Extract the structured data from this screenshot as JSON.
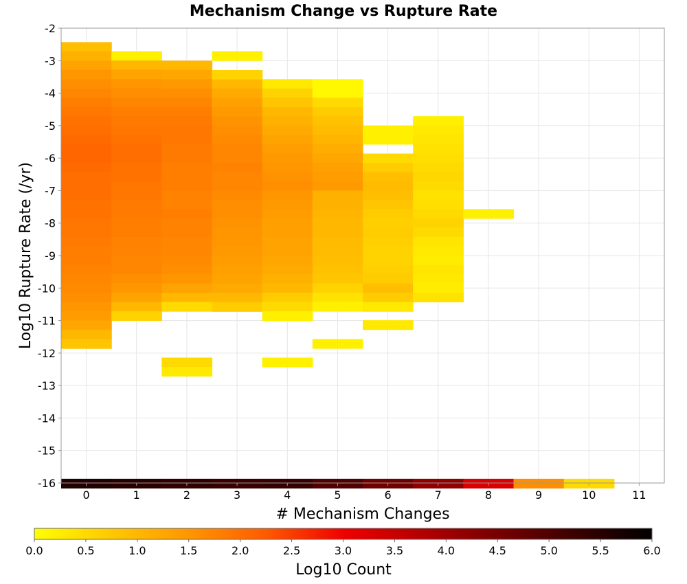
{
  "chart_data": {
    "type": "heatmap",
    "title": "Mechanism Change vs Rupture Rate",
    "xlabel": "# Mechanism Changes",
    "ylabel": "Log10 Rupture Rate (/yr)",
    "xlim": [
      -0.5,
      11.5
    ],
    "ylim": [
      -16,
      -2
    ],
    "x_ticks": [
      "0",
      "1",
      "2",
      "3",
      "4",
      "5",
      "6",
      "7",
      "8",
      "9",
      "10",
      "11"
    ],
    "y_ticks": [
      "-2",
      "-3",
      "-4",
      "-5",
      "-6",
      "-7",
      "-8",
      "-9",
      "-10",
      "-11",
      "-12",
      "-13",
      "-14",
      "-15",
      "-16"
    ],
    "grid": true,
    "bin_height": 0.2857,
    "colorbar": {
      "label": "Log10 Count",
      "range": [
        0,
        6
      ],
      "ticks": [
        "0.0",
        "0.5",
        "1.0",
        "1.5",
        "2.0",
        "2.5",
        "3.0",
        "3.5",
        "4.0",
        "4.5",
        "5.0",
        "5.5",
        "6.0"
      ],
      "colors": [
        "#ffff00",
        "#ffc800",
        "#ff9600",
        "#ff5a00",
        "#f00000",
        "#b40000",
        "#780000",
        "#3c0000",
        "#000000"
      ]
    },
    "columns": [
      {
        "x": 0,
        "y_top": -2.43,
        "values": [
          0.9,
          1.1,
          1.3,
          1.5,
          1.6,
          1.7,
          1.8,
          1.9,
          1.95,
          2.0,
          2.05,
          2.1,
          2.1,
          2.05,
          2.0,
          2.0,
          2.0,
          1.95,
          1.95,
          1.9,
          1.9,
          1.85,
          1.8,
          1.8,
          1.75,
          1.7,
          1.65,
          1.6,
          1.5,
          1.4,
          1.25,
          1.0,
          0.8
        ]
      },
      {
        "x": 1,
        "y_top": -2.71,
        "values": [
          0.2,
          1.0,
          1.3,
          1.5,
          1.6,
          1.7,
          1.8,
          1.85,
          1.9,
          1.95,
          2.0,
          2.0,
          1.95,
          1.95,
          1.9,
          1.9,
          1.85,
          1.85,
          1.8,
          1.8,
          1.75,
          1.75,
          1.7,
          1.7,
          1.6,
          1.5,
          1.3,
          1.0,
          0.6
        ]
      },
      {
        "x": 2,
        "y_top": -3.0,
        "values": [
          1.0,
          1.25,
          1.45,
          1.6,
          1.7,
          1.8,
          1.85,
          1.9,
          1.9,
          1.85,
          1.85,
          1.8,
          1.8,
          1.8,
          1.75,
          1.75,
          1.8,
          1.75,
          1.75,
          1.7,
          1.7,
          1.65,
          1.6,
          1.5,
          1.3,
          1.0,
          0.5
        ]
      },
      {
        "x": 2,
        "y_top": -12.14,
        "values": [
          0.5,
          0.3
        ]
      },
      {
        "x": 3,
        "y_top": -2.71,
        "values": [
          0.2
        ]
      },
      {
        "x": 3,
        "y_top": -3.29,
        "values": [
          0.6,
          1.0,
          1.2,
          1.35,
          1.45,
          1.55,
          1.6,
          1.65,
          1.7,
          1.7,
          1.75,
          1.7,
          1.7,
          1.65,
          1.6,
          1.6,
          1.55,
          1.5,
          1.5,
          1.45,
          1.4,
          1.35,
          1.3,
          1.2,
          1.0,
          0.7
        ]
      },
      {
        "x": 4,
        "y_top": -3.57,
        "values": [
          0.3,
          0.6,
          0.8,
          1.0,
          1.1,
          1.2,
          1.3,
          1.4,
          1.45,
          1.5,
          1.55,
          1.6,
          1.5,
          1.45,
          1.4,
          1.35,
          1.35,
          1.3,
          1.3,
          1.25,
          1.2,
          1.1,
          1.0,
          0.7,
          0.5,
          0.2
        ]
      },
      {
        "x": 4,
        "y_top": -12.14,
        "values": [
          0.2
        ]
      },
      {
        "x": 5,
        "y_top": -3.57,
        "values": [
          0.1,
          0.1,
          0.5,
          0.7,
          0.85,
          0.95,
          1.05,
          1.15,
          1.25,
          1.35,
          1.4,
          1.45,
          1.1,
          1.1,
          1.05,
          1.0,
          1.0,
          0.95,
          0.95,
          0.9,
          0.85,
          0.8,
          0.6,
          0.4,
          0.2
        ]
      },
      {
        "x": 5,
        "y_top": -11.57,
        "values": [
          0.2
        ]
      },
      {
        "x": 6,
        "y_top": -5.0,
        "values": [
          0.2,
          0.2
        ]
      },
      {
        "x": 6,
        "y_top": -5.86,
        "values": [
          0.5,
          0.7,
          0.9,
          0.95,
          0.9,
          0.8,
          0.7,
          0.65,
          0.7,
          0.65,
          0.6,
          0.6,
          0.65,
          0.7,
          0.9,
          0.7,
          0.3
        ]
      },
      {
        "x": 6,
        "y_top": -10.99,
        "values": [
          0.3
        ]
      },
      {
        "x": 7,
        "y_top": -4.71,
        "values": [
          0.2,
          0.3,
          0.35,
          0.4,
          0.45,
          0.5,
          0.55,
          0.5,
          0.4,
          0.45,
          0.5,
          0.6,
          0.5,
          0.35,
          0.3,
          0.25,
          0.35,
          0.3,
          0.25,
          0.2
        ]
      },
      {
        "x": 7,
        "y_top": -10.14,
        "values": [
          0.4
        ]
      },
      {
        "x": 8,
        "y_top": -7.57,
        "values": [
          0.2
        ]
      },
      {
        "x": 0,
        "y_top": -15.87,
        "values": [
          5.6
        ]
      },
      {
        "x": 1,
        "y_top": -15.87,
        "values": [
          5.5
        ]
      },
      {
        "x": 2,
        "y_top": -15.87,
        "values": [
          5.4
        ]
      },
      {
        "x": 3,
        "y_top": -15.87,
        "values": [
          5.3
        ]
      },
      {
        "x": 4,
        "y_top": -15.87,
        "values": [
          5.35
        ]
      },
      {
        "x": 5,
        "y_top": -15.87,
        "values": [
          5.0
        ]
      },
      {
        "x": 6,
        "y_top": -15.87,
        "values": [
          4.6
        ]
      },
      {
        "x": 7,
        "y_top": -15.87,
        "values": [
          4.2
        ]
      },
      {
        "x": 8,
        "y_top": -15.87,
        "values": [
          3.3
        ]
      },
      {
        "x": 9,
        "y_top": -15.87,
        "values": [
          1.6
        ]
      },
      {
        "x": 10,
        "y_top": -15.87,
        "values": [
          0.5
        ]
      }
    ]
  }
}
